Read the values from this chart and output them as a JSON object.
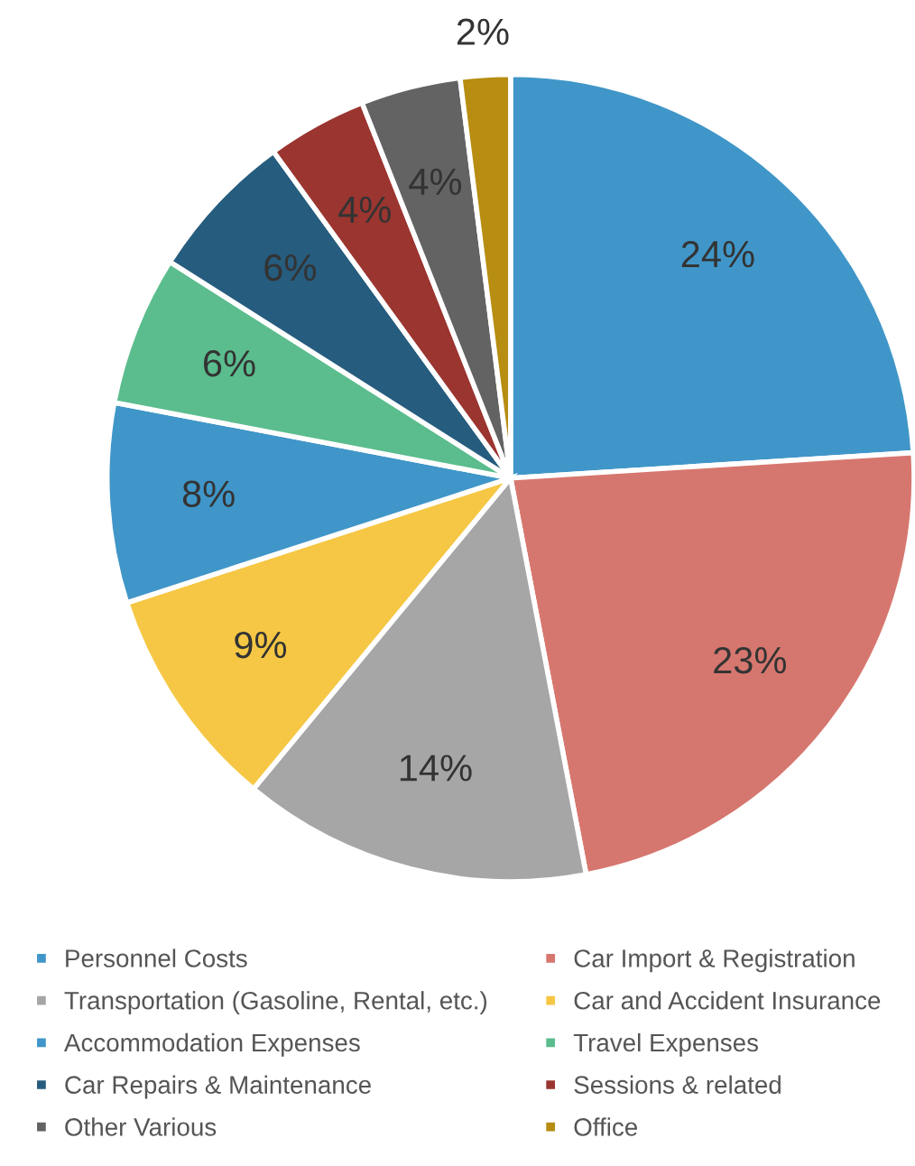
{
  "chart_data": {
    "type": "pie",
    "categories": [
      "Personnel Costs",
      "Car Import & Registration",
      "Transportation (Gasoline, Rental, etc.)",
      "Car and Accident Insurance",
      "Accommodation Expenses",
      "Travel Expenses",
      "Car Repairs & Maintenance",
      "Sessions & related",
      "Other Various",
      "Office"
    ],
    "values": [
      24,
      23,
      14,
      9,
      8,
      6,
      6,
      4,
      4,
      2
    ],
    "colors": [
      "#4096c8",
      "#d6776f",
      "#a6a6a6",
      "#f6c744",
      "#4096c8",
      "#5bbd8e",
      "#265c7e",
      "#9b3530",
      "#636363",
      "#b78d12"
    ],
    "value_labels": [
      "24%",
      "23%",
      "14%",
      "9%",
      "8%",
      "6%",
      "6%",
      "4%",
      "4%",
      "2%"
    ],
    "legend": "bottom"
  }
}
